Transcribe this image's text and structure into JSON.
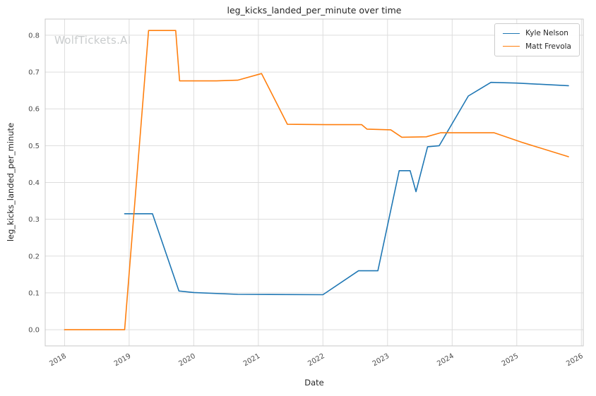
{
  "watermark": "WolfTickets.AI",
  "chart_data": {
    "type": "line",
    "title": "leg_kicks_landed_per_minute over time",
    "xlabel": "Date",
    "ylabel": "leg_kicks_landed_per_minute",
    "xlim": [
      2017.7,
      2026.03
    ],
    "ylim": [
      -0.044,
      0.844
    ],
    "x_ticks": [
      2018,
      2019,
      2020,
      2021,
      2022,
      2023,
      2024,
      2025,
      2026
    ],
    "y_ticks": [
      0.0,
      0.1,
      0.2,
      0.3,
      0.4,
      0.5,
      0.6,
      0.7,
      0.8
    ],
    "grid": true,
    "legend_position": "upper right",
    "series": [
      {
        "name": "Kyle Nelson",
        "color": "#1f77b4",
        "x": [
          2018.93,
          2019.36,
          2019.77,
          2020.0,
          2020.68,
          2022.0,
          2022.55,
          2022.85,
          2023.18,
          2023.35,
          2023.44,
          2023.62,
          2023.8,
          2024.25,
          2024.6,
          2025.0,
          2025.8
        ],
        "y": [
          0.315,
          0.315,
          0.105,
          0.101,
          0.096,
          0.095,
          0.16,
          0.16,
          0.432,
          0.432,
          0.375,
          0.497,
          0.5,
          0.635,
          0.672,
          0.67,
          0.663
        ]
      },
      {
        "name": "Matt Frevola",
        "color": "#ff7f0e",
        "x": [
          2018.0,
          2018.93,
          2019.3,
          2019.72,
          2019.78,
          2020.35,
          2020.68,
          2021.05,
          2021.45,
          2022.05,
          2022.6,
          2022.68,
          2023.05,
          2023.22,
          2023.6,
          2023.82,
          2024.3,
          2024.65,
          2025.1,
          2025.8
        ],
        "y": [
          0.0,
          0.0,
          0.813,
          0.813,
          0.676,
          0.676,
          0.678,
          0.696,
          0.558,
          0.557,
          0.557,
          0.545,
          0.543,
          0.523,
          0.524,
          0.535,
          0.535,
          0.535,
          0.508,
          0.47
        ]
      }
    ]
  }
}
